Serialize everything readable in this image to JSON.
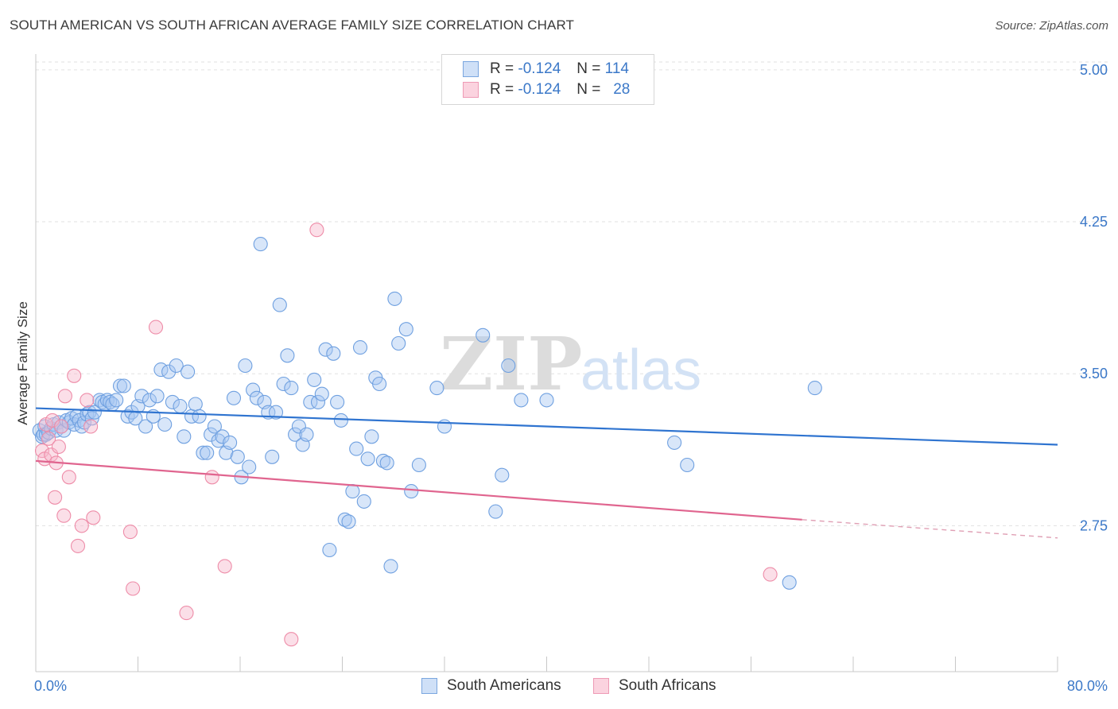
{
  "header": {
    "title": "SOUTH AMERICAN VS SOUTH AFRICAN AVERAGE FAMILY SIZE CORRELATION CHART",
    "source": "Source: ZipAtlas.com"
  },
  "watermark": {
    "zip": "ZIP",
    "atlas": "atlas"
  },
  "legend_top": {
    "rows": [
      {
        "r_key": "R =",
        "r_value": "-0.124",
        "n_key": "N =",
        "n_value": "114",
        "color": "#a9c8f2"
      },
      {
        "r_key": "R =",
        "r_value": "-0.124",
        "n_key": "N =",
        "n_value": "28",
        "color": "#f7b9cc"
      }
    ]
  },
  "legend_bottom": {
    "items": [
      {
        "label": "South Americans",
        "color": "#a9c8f2"
      },
      {
        "label": "South Africans",
        "color": "#f7b9cc"
      }
    ]
  },
  "chart_data": {
    "type": "scatter",
    "title": "SOUTH AMERICAN VS SOUTH AFRICAN AVERAGE FAMILY SIZE CORRELATION CHART",
    "xlabel": "",
    "ylabel": "Average Family Size",
    "xlim": [
      0,
      80
    ],
    "ylim": [
      2.03,
      5.07
    ],
    "x_tick_labels": [
      "0.0%",
      "80.0%"
    ],
    "y_ticks": [
      2.75,
      3.5,
      4.25,
      5.0
    ],
    "y_tick_labels": [
      "2.75",
      "3.50",
      "4.25",
      "5.00"
    ],
    "grid": true,
    "legend_position": "top-center",
    "series": [
      {
        "name": "South Americans",
        "color": "#6fa0e0",
        "fill": "#a9c8f2",
        "r": -0.124,
        "n": 114,
        "trend": {
          "x": [
            0,
            80
          ],
          "y": [
            3.33,
            3.15
          ],
          "color": "#2f74d0"
        },
        "points": [
          [
            0.3,
            3.22
          ],
          [
            0.5,
            3.19
          ],
          [
            0.6,
            3.2
          ],
          [
            0.7,
            3.24
          ],
          [
            0.8,
            3.2
          ],
          [
            1.0,
            3.21
          ],
          [
            1.2,
            3.23
          ],
          [
            1.4,
            3.25
          ],
          [
            1.6,
            3.22
          ],
          [
            1.8,
            3.26
          ],
          [
            2.0,
            3.24
          ],
          [
            2.2,
            3.22
          ],
          [
            2.4,
            3.27
          ],
          [
            2.6,
            3.26
          ],
          [
            2.8,
            3.28
          ],
          [
            3.0,
            3.25
          ],
          [
            3.2,
            3.29
          ],
          [
            3.4,
            3.27
          ],
          [
            3.6,
            3.24
          ],
          [
            3.8,
            3.26
          ],
          [
            4.0,
            3.3
          ],
          [
            4.2,
            3.31
          ],
          [
            4.4,
            3.28
          ],
          [
            4.6,
            3.31
          ],
          [
            5.0,
            3.37
          ],
          [
            5.2,
            3.36
          ],
          [
            5.4,
            3.35
          ],
          [
            5.6,
            3.37
          ],
          [
            5.8,
            3.36
          ],
          [
            6.0,
            3.35
          ],
          [
            6.3,
            3.37
          ],
          [
            6.6,
            3.44
          ],
          [
            6.9,
            3.44
          ],
          [
            7.2,
            3.29
          ],
          [
            7.5,
            3.31
          ],
          [
            7.8,
            3.28
          ],
          [
            8.0,
            3.34
          ],
          [
            8.3,
            3.39
          ],
          [
            8.6,
            3.24
          ],
          [
            8.9,
            3.37
          ],
          [
            9.2,
            3.29
          ],
          [
            9.5,
            3.39
          ],
          [
            9.8,
            3.52
          ],
          [
            10.1,
            3.25
          ],
          [
            10.4,
            3.51
          ],
          [
            10.7,
            3.36
          ],
          [
            11.0,
            3.54
          ],
          [
            11.3,
            3.34
          ],
          [
            11.6,
            3.19
          ],
          [
            11.9,
            3.51
          ],
          [
            12.2,
            3.29
          ],
          [
            12.5,
            3.35
          ],
          [
            12.8,
            3.29
          ],
          [
            13.1,
            3.11
          ],
          [
            13.4,
            3.11
          ],
          [
            13.7,
            3.2
          ],
          [
            14.0,
            3.24
          ],
          [
            14.3,
            3.17
          ],
          [
            14.6,
            3.19
          ],
          [
            14.9,
            3.11
          ],
          [
            15.2,
            3.16
          ],
          [
            15.5,
            3.38
          ],
          [
            15.8,
            3.09
          ],
          [
            16.1,
            2.99
          ],
          [
            16.4,
            3.54
          ],
          [
            16.7,
            3.04
          ],
          [
            17.0,
            3.42
          ],
          [
            17.3,
            3.38
          ],
          [
            17.6,
            4.14
          ],
          [
            17.9,
            3.36
          ],
          [
            18.2,
            3.31
          ],
          [
            18.5,
            3.09
          ],
          [
            18.8,
            3.31
          ],
          [
            19.1,
            3.84
          ],
          [
            19.4,
            3.45
          ],
          [
            19.7,
            3.59
          ],
          [
            20.0,
            3.43
          ],
          [
            20.3,
            3.2
          ],
          [
            20.6,
            3.24
          ],
          [
            20.9,
            3.15
          ],
          [
            21.2,
            3.2
          ],
          [
            21.5,
            3.36
          ],
          [
            21.8,
            3.47
          ],
          [
            22.1,
            3.36
          ],
          [
            22.4,
            3.4
          ],
          [
            22.7,
            3.62
          ],
          [
            23.0,
            2.63
          ],
          [
            23.3,
            3.6
          ],
          [
            23.6,
            3.36
          ],
          [
            23.9,
            3.27
          ],
          [
            24.2,
            2.78
          ],
          [
            24.5,
            2.77
          ],
          [
            24.8,
            2.92
          ],
          [
            25.1,
            3.13
          ],
          [
            25.4,
            3.63
          ],
          [
            25.7,
            2.87
          ],
          [
            26.0,
            3.08
          ],
          [
            26.3,
            3.19
          ],
          [
            26.6,
            3.48
          ],
          [
            26.9,
            3.45
          ],
          [
            27.2,
            3.07
          ],
          [
            27.5,
            3.06
          ],
          [
            27.8,
            2.55
          ],
          [
            28.1,
            3.87
          ],
          [
            28.4,
            3.65
          ],
          [
            29.0,
            3.72
          ],
          [
            29.4,
            2.92
          ],
          [
            30.0,
            3.05
          ],
          [
            32.0,
            3.24
          ],
          [
            35.0,
            3.69
          ],
          [
            36.0,
            2.82
          ],
          [
            36.5,
            3.0
          ],
          [
            37.0,
            3.54
          ],
          [
            38.0,
            3.37
          ],
          [
            40.0,
            3.37
          ],
          [
            50.0,
            3.16
          ],
          [
            51.0,
            3.05
          ],
          [
            61.0,
            3.43
          ],
          [
            59.0,
            2.47
          ],
          [
            31.4,
            3.43
          ]
        ]
      },
      {
        "name": "South Africans",
        "color": "#ee8ca8",
        "fill": "#f7b9cc",
        "r": -0.124,
        "n": 28,
        "trend": {
          "x": [
            0,
            60
          ],
          "y": [
            3.07,
            2.78
          ],
          "color": "#e0658f"
        },
        "trend_dashed": {
          "x": [
            60,
            80
          ],
          "y": [
            2.78,
            2.69
          ],
          "color": "#e0a0b5"
        },
        "points": [
          [
            0.5,
            3.12
          ],
          [
            0.7,
            3.08
          ],
          [
            0.8,
            3.25
          ],
          [
            1.0,
            3.18
          ],
          [
            1.2,
            3.1
          ],
          [
            1.3,
            3.27
          ],
          [
            1.5,
            2.89
          ],
          [
            1.6,
            3.06
          ],
          [
            1.8,
            3.14
          ],
          [
            2.0,
            3.24
          ],
          [
            2.2,
            2.8
          ],
          [
            2.3,
            3.39
          ],
          [
            2.6,
            2.99
          ],
          [
            3.0,
            3.49
          ],
          [
            3.3,
            2.65
          ],
          [
            3.6,
            2.75
          ],
          [
            4.0,
            3.37
          ],
          [
            4.3,
            3.24
          ],
          [
            4.5,
            2.79
          ],
          [
            7.4,
            2.72
          ],
          [
            7.6,
            2.44
          ],
          [
            9.4,
            3.73
          ],
          [
            11.8,
            2.32
          ],
          [
            13.8,
            2.99
          ],
          [
            14.8,
            2.55
          ],
          [
            20.0,
            2.19
          ],
          [
            22.0,
            4.21
          ],
          [
            57.5,
            2.51
          ]
        ]
      }
    ]
  }
}
